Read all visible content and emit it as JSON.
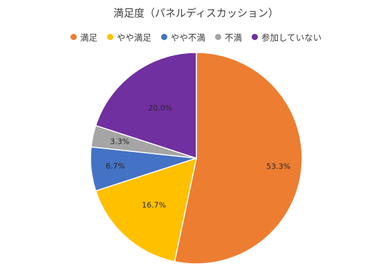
{
  "chart_data": {
    "type": "pie",
    "title": "満足度（パネルディスカッション）",
    "categories": [
      "満足",
      "やや満足",
      "やや不満",
      "不満",
      "参加していない"
    ],
    "values": [
      53.3,
      16.7,
      6.7,
      3.3,
      20.0
    ],
    "labels": [
      "53.3%",
      "16.7%",
      "6.7%",
      "3.3%",
      "20.0%"
    ],
    "colors": [
      "#ED7D31",
      "#FFC000",
      "#4472C4",
      "#A5A5A5",
      "#7030A0"
    ],
    "legend_position": "top",
    "start_angle_deg": 0,
    "direction": "clockwise"
  }
}
